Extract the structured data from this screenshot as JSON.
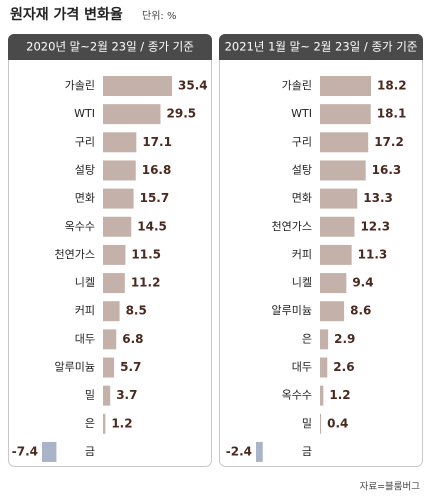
{
  "title": "원자재 가격 변화율",
  "unit": "단위: %",
  "source": "자료=블룸버그",
  "chart_data": [
    {
      "type": "bar",
      "orientation": "horizontal",
      "title": "2020년 말~2월 23일 / 종가 기준",
      "categories": [
        "가솔린",
        "WTI",
        "구리",
        "설탕",
        "면화",
        "옥수수",
        "천연가스",
        "니켈",
        "커피",
        "대두",
        "알루미늄",
        "밀",
        "은",
        "금"
      ],
      "values": [
        35.4,
        29.5,
        17.1,
        16.8,
        15.7,
        14.5,
        11.5,
        11.2,
        8.5,
        6.8,
        5.7,
        3.7,
        1.2,
        -7.4
      ],
      "color": "#c4b2aa",
      "negative_color": "#a9b4c8"
    },
    {
      "type": "bar",
      "orientation": "horizontal",
      "title": "2021년 1월 말~ 2월 23일 / 종가 기준",
      "categories": [
        "가솔린",
        "WTI",
        "구리",
        "설탕",
        "면화",
        "천연가스",
        "커피",
        "니켈",
        "알루미늄",
        "은",
        "대두",
        "옥수수",
        "밀",
        "금"
      ],
      "values": [
        18.2,
        18.1,
        17.2,
        16.3,
        13.3,
        12.3,
        11.3,
        9.4,
        8.6,
        2.9,
        2.6,
        1.2,
        0.4,
        -2.4
      ],
      "color": "#c4b2aa",
      "negative_color": "#a9b4c8"
    }
  ]
}
